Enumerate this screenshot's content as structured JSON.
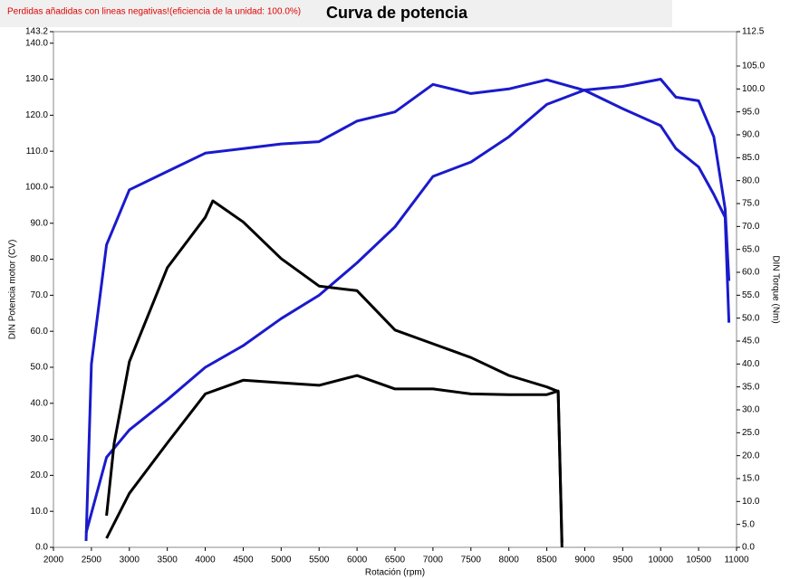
{
  "chart_data": {
    "type": "line",
    "title": "Curva de potencia",
    "note": "Perdidas añadidas con lineas negativas!(eficiencia de la unidad: 100.0%)",
    "x_label": "Rotación (rpm)",
    "y_label": "DIN Potencia motor (CV)",
    "y2_label": "DIN Torque (Nm)",
    "xlim": [
      2000,
      11000
    ],
    "xticks": [
      2000,
      2500,
      3000,
      3500,
      4000,
      4500,
      5000,
      5500,
      6000,
      6500,
      7000,
      7500,
      8000,
      8500,
      9000,
      9500,
      10000,
      10500,
      11000
    ],
    "ylim": [
      0,
      143.2
    ],
    "yticks": [
      {
        "value": 0,
        "label": "0.0"
      },
      {
        "value": 10,
        "label": "10.0"
      },
      {
        "value": 20,
        "label": "20.0"
      },
      {
        "value": 30,
        "label": "30.0"
      },
      {
        "value": 40,
        "label": "40.0"
      },
      {
        "value": 50,
        "label": "50.0"
      },
      {
        "value": 60,
        "label": "60.0"
      },
      {
        "value": 70,
        "label": "70.0"
      },
      {
        "value": 80,
        "label": "80.0"
      },
      {
        "value": 90,
        "label": "90.0"
      },
      {
        "value": 100,
        "label": "100.0"
      },
      {
        "value": 110,
        "label": "110.0"
      },
      {
        "value": 120,
        "label": "120.0"
      },
      {
        "value": 130,
        "label": "130.0"
      },
      {
        "value": 140,
        "label": "140.0"
      },
      143.2
    ],
    "y2lim": [
      0,
      112.5
    ],
    "y2ticks": [
      {
        "value": 0,
        "label": "0.0"
      },
      {
        "value": 5,
        "label": "5.0"
      },
      {
        "value": 10,
        "label": "10.0"
      },
      {
        "value": 15,
        "label": "15.0"
      },
      {
        "value": 20,
        "label": "20.0"
      },
      {
        "value": 25,
        "label": "25.0"
      },
      {
        "value": 30,
        "label": "30.0"
      },
      {
        "value": 35,
        "label": "35.0"
      },
      {
        "value": 40,
        "label": "40.0"
      },
      {
        "value": 45,
        "label": "45.0"
      },
      {
        "value": 50,
        "label": "50.0"
      },
      {
        "value": 55,
        "label": "55.0"
      },
      {
        "value": 60,
        "label": "60.0"
      },
      {
        "value": 65,
        "label": "65.0"
      },
      {
        "value": 70,
        "label": "70.0"
      },
      {
        "value": 75,
        "label": "75.0"
      },
      {
        "value": 80,
        "label": "80.0"
      },
      {
        "value": 85,
        "label": "85.0"
      },
      {
        "value": 90,
        "label": "90.0"
      },
      {
        "value": 95,
        "label": "95.0"
      },
      {
        "value": 100,
        "label": "100.0"
      },
      {
        "value": 105,
        "label": "105.0"
      },
      112.5
    ],
    "series": [
      {
        "color": "#1a1acc",
        "axis": "y",
        "x": [
          2430,
          2700,
          3000,
          3500,
          4000,
          4500,
          5000,
          5500,
          6000,
          6500,
          7000,
          7500,
          8000,
          8500,
          9000,
          9500,
          10000,
          10200,
          10500,
          10700,
          10850,
          10900
        ],
        "values": [
          4,
          25,
          32.6,
          41,
          50,
          56,
          63.5,
          70,
          79,
          89,
          103,
          107,
          114,
          123,
          127,
          128,
          130,
          125,
          124,
          114,
          94,
          74
        ]
      },
      {
        "color": "#1a1acc",
        "axis": "y2",
        "x": [
          2430,
          2500,
          2700,
          3000,
          3500,
          4000,
          4500,
          5000,
          5500,
          6000,
          6500,
          7000,
          7500,
          8000,
          8500,
          9000,
          9500,
          10000,
          10200,
          10500,
          10700,
          10850,
          10900
        ],
        "values": [
          1.4,
          40,
          66,
          78,
          82,
          86,
          87,
          88,
          88.5,
          93,
          95,
          101,
          99,
          100,
          102,
          99.7,
          95.7,
          92,
          87,
          83,
          77,
          72,
          49
        ]
      },
      {
        "color": "#000000",
        "axis": "y2",
        "x": [
          2700,
          2800,
          3000,
          3500,
          4000,
          4100,
          4500,
          5000,
          5500,
          6000,
          6500,
          7000,
          7500,
          8000,
          8500,
          8650,
          8700
        ],
        "values": [
          6.9,
          22.7,
          40.5,
          61,
          72,
          75.6,
          71,
          63,
          57,
          56,
          47.4,
          44.4,
          41.4,
          37.5,
          35,
          34,
          1
        ]
      },
      {
        "color": "#000000",
        "axis": "y",
        "x": [
          2700,
          3000,
          3500,
          4000,
          4500,
          5000,
          5500,
          6000,
          6500,
          7000,
          7500,
          8000,
          8500,
          8650,
          8700
        ],
        "values": [
          2.5,
          15,
          29,
          42.6,
          46.4,
          45.7,
          45,
          47.7,
          44,
          44,
          42.6,
          42.4,
          42.4,
          43.4,
          0
        ]
      }
    ]
  }
}
